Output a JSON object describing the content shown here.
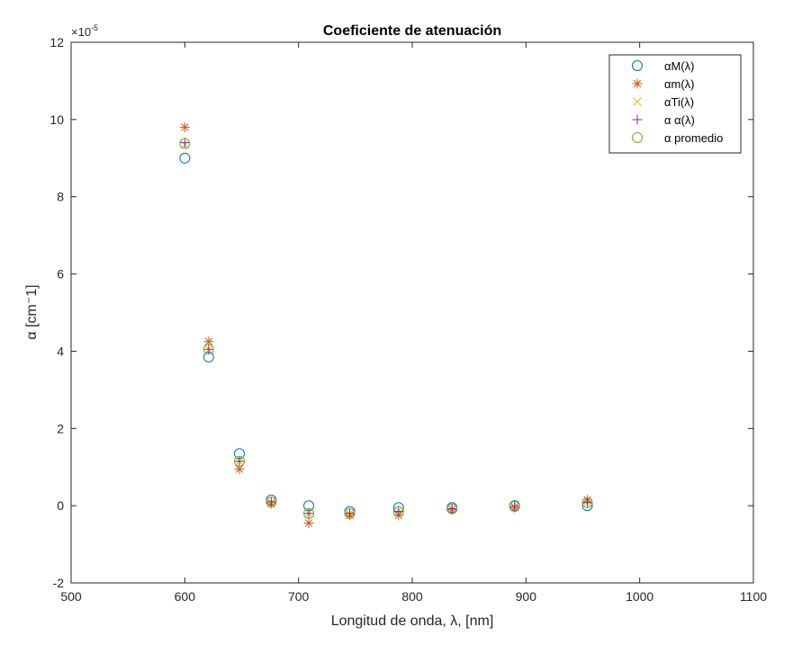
{
  "chart_data": {
    "type": "scatter",
    "title": "Coeficiente  de atenuación",
    "xlabel": "Longitud de onda, λ,  [nm]",
    "ylabel": "α  [cm⁻1]",
    "y_exponent_base": "×10",
    "y_exponent_power": "-5",
    "xlim": [
      500,
      1100
    ],
    "ylim": [
      -2,
      12
    ],
    "x_ticks": [
      500,
      600,
      700,
      800,
      900,
      1000,
      1100
    ],
    "y_ticks": [
      -2,
      0,
      2,
      4,
      6,
      8,
      10,
      12
    ],
    "legend_position": "top-right",
    "grid": false,
    "x": [
      600,
      621,
      648,
      676,
      709,
      745,
      788,
      835,
      890,
      954
    ],
    "series": [
      {
        "name": "αM(λ)",
        "marker": "circle",
        "color": "#0072BD",
        "values": [
          9.0,
          3.85,
          1.35,
          0.15,
          0.0,
          -0.15,
          -0.05,
          -0.05,
          0.0,
          0.0
        ]
      },
      {
        "name": "αm(λ)",
        "marker": "asterisk",
        "color": "#D95319",
        "values": [
          9.8,
          4.25,
          0.95,
          0.05,
          -0.45,
          -0.25,
          -0.25,
          -0.1,
          -0.05,
          0.15
        ]
      },
      {
        "name": "αTi(λ)",
        "marker": "x",
        "color": "#EDB120",
        "values": [
          9.35,
          4.05,
          1.15,
          0.1,
          -0.2,
          -0.2,
          -0.15,
          -0.08,
          -0.02,
          0.08
        ]
      },
      {
        "name": "α  α(λ)",
        "marker": "plus",
        "color": "#7E2F8E",
        "values": [
          9.4,
          4.05,
          1.15,
          0.1,
          -0.2,
          -0.2,
          -0.15,
          -0.08,
          -0.02,
          0.08
        ]
      },
      {
        "name": "α  promedio",
        "marker": "circle",
        "color": "#77AC30",
        "values": [
          9.38,
          4.05,
          1.15,
          0.1,
          -0.2,
          -0.2,
          -0.15,
          -0.08,
          -0.02,
          0.08
        ]
      }
    ]
  }
}
